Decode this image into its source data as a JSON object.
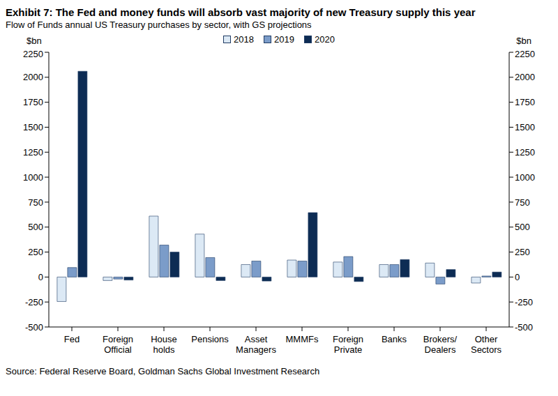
{
  "chart_data": {
    "type": "bar",
    "title": "Exhibit 7: The Fed and money funds will absorb vast majority of new Treasury supply this year",
    "subtitle": "Flow of Funds annual US Treasury purchases by sector, with GS projections",
    "y_label": "$bn",
    "y2_label": "$bn",
    "source": "Source: Federal Reserve Board, Goldman Sachs Global Investment Research",
    "categories": [
      "Fed",
      "Foreign Official",
      "House holds",
      "Pensions",
      "Asset Managers",
      "MMMFs",
      "Foreign Private",
      "Banks",
      "Brokers/ Dealers",
      "Other Sectors"
    ],
    "series": [
      {
        "name": "2018",
        "color": "#dce9f5",
        "values": [
          -245,
          -35,
          610,
          430,
          125,
          170,
          150,
          125,
          140,
          -60
        ]
      },
      {
        "name": "2019",
        "color": "#7b9cc9",
        "values": [
          95,
          -20,
          320,
          195,
          160,
          160,
          205,
          125,
          -70,
          10
        ]
      },
      {
        "name": "2020",
        "color": "#0d2c54",
        "values": [
          2060,
          -30,
          250,
          -35,
          -40,
          645,
          -45,
          175,
          75,
          50
        ]
      }
    ],
    "ylim": [
      -500,
      2250
    ],
    "yticks": [
      -500,
      -250,
      0,
      250,
      500,
      750,
      1000,
      1250,
      1500,
      1750,
      2000,
      2250
    ],
    "y2lim": [
      -500,
      2250
    ],
    "y2ticks": [
      -500,
      -250,
      0,
      250,
      500,
      750,
      1000,
      1250,
      1500,
      1750,
      2000,
      2250
    ],
    "legend": "top",
    "grid": false
  }
}
